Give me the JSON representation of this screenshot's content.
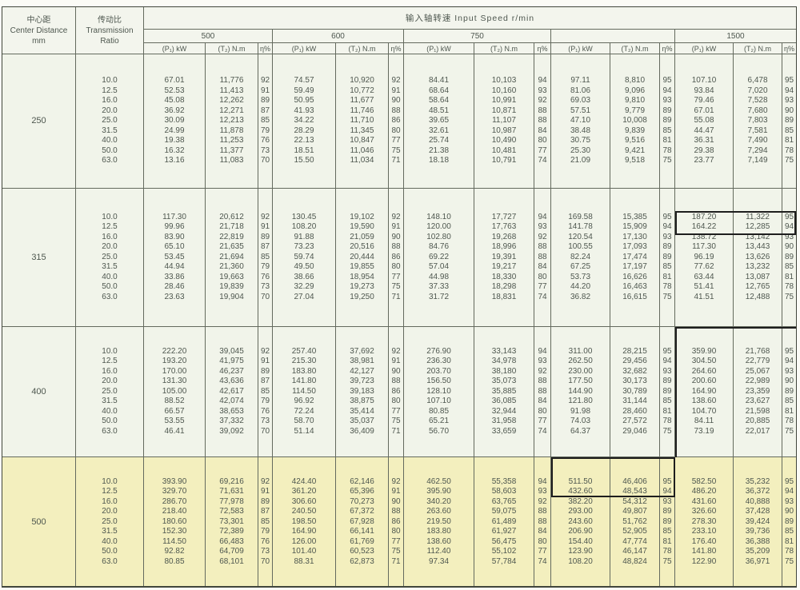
{
  "header": {
    "center_distance_lines": [
      "中心距",
      "Center Distance",
      "mm"
    ],
    "transmission_ratio_lines": [
      "传动比",
      "Transmission",
      "Ratio"
    ],
    "input_speed_title": "输入轴转速  Input Speed r/min",
    "speeds": [
      "500",
      "600",
      "750",
      "",
      "1500"
    ],
    "col_p": "(P₁) kW",
    "col_t": "(T₂) N.m",
    "col_eta": "η%"
  },
  "groups": [
    {
      "center_distance": "250",
      "highlight": false,
      "ratios": [
        "10.0",
        "12.5",
        "16.0",
        "20.0",
        "25.0",
        "31.5",
        "40.0",
        "50.0",
        "63.0"
      ],
      "speeds": [
        {
          "p": [
            "67.01",
            "52.53",
            "45.08",
            "36.92",
            "30.09",
            "24.99",
            "19.38",
            "16.32",
            "13.16"
          ],
          "t": [
            "11,776",
            "11,413",
            "12,262",
            "12,271",
            "12,213",
            "11,878",
            "11,253",
            "11,377",
            "11,083"
          ],
          "eta": [
            "92",
            "91",
            "89",
            "87",
            "85",
            "79",
            "76",
            "73",
            "70"
          ]
        },
        {
          "p": [
            "74.57",
            "59.49",
            "50.95",
            "41.93",
            "34.22",
            "28.29",
            "22.13",
            "18.51",
            "15.50"
          ],
          "t": [
            "10,920",
            "10,772",
            "11,677",
            "11,746",
            "11,710",
            "11,345",
            "10,847",
            "11,046",
            "11,034"
          ],
          "eta": [
            "92",
            "91",
            "90",
            "88",
            "86",
            "80",
            "77",
            "75",
            "71"
          ]
        },
        {
          "p": [
            "84.41",
            "68.64",
            "58.64",
            "48.51",
            "39.65",
            "32.61",
            "25.74",
            "21.38",
            "18.18"
          ],
          "t": [
            "10,103",
            "10,160",
            "10,991",
            "10,871",
            "11,107",
            "10,987",
            "10,490",
            "10,481",
            "10,791"
          ],
          "eta": [
            "94",
            "93",
            "92",
            "88",
            "88",
            "84",
            "80",
            "77",
            "74"
          ]
        },
        {
          "p": [
            "97.11",
            "81.06",
            "69.03",
            "57.51",
            "47.10",
            "38.48",
            "30.75",
            "25.30",
            "21.09"
          ],
          "t": [
            "8,810",
            "9,096",
            "9,810",
            "9,779",
            "10,008",
            "9,839",
            "9,516",
            "9,421",
            "9,518"
          ],
          "eta": [
            "95",
            "94",
            "93",
            "89",
            "89",
            "85",
            "81",
            "78",
            "75"
          ]
        },
        {
          "p": [
            "107.10",
            "93.84",
            "79.46",
            "67.01",
            "55.08",
            "44.47",
            "36.31",
            "29.38",
            "23.77"
          ],
          "t": [
            "6,478",
            "7,020",
            "7,528",
            "7,680",
            "7,803",
            "7,581",
            "7,490",
            "7,294",
            "7,149"
          ],
          "eta": [
            "95",
            "94",
            "93",
            "90",
            "89",
            "85",
            "81",
            "78",
            "75"
          ]
        }
      ]
    },
    {
      "center_distance": "315",
      "highlight": false,
      "ratios": [
        "10.0",
        "12.5",
        "16.0",
        "20.0",
        "25.0",
        "31.5",
        "40.0",
        "50.0",
        "63.0"
      ],
      "speeds": [
        {
          "p": [
            "117.30",
            "99.96",
            "83.90",
            "65.10",
            "53.45",
            "44.94",
            "33.86",
            "28.46",
            "23.63"
          ],
          "t": [
            "20,612",
            "21,718",
            "22,819",
            "21,635",
            "21,694",
            "21,360",
            "19,663",
            "19,839",
            "19,904"
          ],
          "eta": [
            "92",
            "91",
            "89",
            "87",
            "85",
            "79",
            "76",
            "73",
            "70"
          ]
        },
        {
          "p": [
            "130.45",
            "108.20",
            "91.88",
            "73.23",
            "59.74",
            "49.50",
            "38.66",
            "32.29",
            "27.04"
          ],
          "t": [
            "19,102",
            "19,590",
            "21,059",
            "20,516",
            "20,444",
            "19,855",
            "18,954",
            "19,273",
            "19,250"
          ],
          "eta": [
            "92",
            "91",
            "90",
            "88",
            "86",
            "80",
            "77",
            "75",
            "71"
          ]
        },
        {
          "p": [
            "148.10",
            "120.00",
            "102.80",
            "84.76",
            "69.22",
            "57.04",
            "44.98",
            "37.33",
            "31.72"
          ],
          "t": [
            "17,727",
            "17,763",
            "19,268",
            "18,996",
            "19,391",
            "19,217",
            "18,330",
            "18,298",
            "18,831"
          ],
          "eta": [
            "94",
            "93",
            "92",
            "88",
            "88",
            "84",
            "80",
            "77",
            "74"
          ]
        },
        {
          "p": [
            "169.58",
            "141.78",
            "120.54",
            "100.55",
            "82.24",
            "67.25",
            "53.73",
            "44.20",
            "36.82"
          ],
          "t": [
            "15,385",
            "15,909",
            "17,130",
            "17,093",
            "17,474",
            "17,197",
            "16,626",
            "16,463",
            "16,615"
          ],
          "eta": [
            "95",
            "94",
            "93",
            "89",
            "89",
            "85",
            "81",
            "78",
            "75"
          ]
        },
        {
          "p": [
            "187.20",
            "164.22",
            "138.72",
            "117.30",
            "96.19",
            "77.62",
            "63.44",
            "51.41",
            "41.51"
          ],
          "t": [
            "11,322",
            "12,285",
            "13,142",
            "13,443",
            "13,626",
            "13,232",
            "13,087",
            "12,765",
            "12,488"
          ],
          "eta": [
            "95",
            "94",
            "93",
            "90",
            "89",
            "85",
            "81",
            "78",
            "75"
          ]
        }
      ]
    },
    {
      "center_distance": "400",
      "highlight": false,
      "ratios": [
        "10.0",
        "12.5",
        "16.0",
        "20.0",
        "25.0",
        "31.5",
        "40.0",
        "50.0",
        "63.0"
      ],
      "speeds": [
        {
          "p": [
            "222.20",
            "193.20",
            "170.00",
            "131.30",
            "105.00",
            "88.52",
            "66.57",
            "53.55",
            "46.41"
          ],
          "t": [
            "39,045",
            "41,975",
            "46,237",
            "43,636",
            "42,617",
            "42,074",
            "38,653",
            "37,332",
            "39,092"
          ],
          "eta": [
            "92",
            "91",
            "89",
            "87",
            "85",
            "79",
            "76",
            "73",
            "70"
          ]
        },
        {
          "p": [
            "257.40",
            "215.30",
            "183.80",
            "141.80",
            "114.50",
            "96.92",
            "72.24",
            "58.70",
            "51.14"
          ],
          "t": [
            "37,692",
            "38,981",
            "42,127",
            "39,723",
            "39,183",
            "38,875",
            "35,414",
            "35,037",
            "36,409"
          ],
          "eta": [
            "92",
            "91",
            "90",
            "88",
            "86",
            "80",
            "77",
            "75",
            "71"
          ]
        },
        {
          "p": [
            "276.90",
            "236.30",
            "203.70",
            "156.50",
            "128.10",
            "107.10",
            "80.85",
            "65.21",
            "56.70"
          ],
          "t": [
            "33,143",
            "34,978",
            "38,180",
            "35,073",
            "35,885",
            "36,085",
            "32,944",
            "31,958",
            "33,659"
          ],
          "eta": [
            "94",
            "93",
            "92",
            "88",
            "88",
            "84",
            "80",
            "77",
            "74"
          ]
        },
        {
          "p": [
            "311.00",
            "262.50",
            "230.00",
            "177.50",
            "144.90",
            "121.80",
            "91.98",
            "74.03",
            "64.37"
          ],
          "t": [
            "28,215",
            "29,456",
            "32,682",
            "30,173",
            "30,789",
            "31,144",
            "28,460",
            "27,572",
            "29,046"
          ],
          "eta": [
            "95",
            "94",
            "93",
            "89",
            "89",
            "85",
            "81",
            "78",
            "75"
          ]
        },
        {
          "p": [
            "359.90",
            "304.50",
            "264.60",
            "200.60",
            "164.90",
            "138.60",
            "104.70",
            "84.11",
            "73.19"
          ],
          "t": [
            "21,768",
            "22,779",
            "25,067",
            "22,989",
            "23,359",
            "23,627",
            "21,598",
            "20,885",
            "22,017"
          ],
          "eta": [
            "95",
            "94",
            "93",
            "90",
            "89",
            "85",
            "81",
            "78",
            "75"
          ]
        }
      ]
    },
    {
      "center_distance": "500",
      "highlight": true,
      "ratios": [
        "10.0",
        "12.5",
        "16.0",
        "20.0",
        "25.0",
        "31.5",
        "40.0",
        "50.0",
        "63.0"
      ],
      "speeds": [
        {
          "p": [
            "393.90",
            "329.70",
            "286.70",
            "218.40",
            "180.60",
            "152.30",
            "114.50",
            "92.82",
            "80.85"
          ],
          "t": [
            "69,216",
            "71,631",
            "77,978",
            "72,583",
            "73,301",
            "72,389",
            "66,483",
            "64,709",
            "68,101"
          ],
          "eta": [
            "92",
            "91",
            "89",
            "87",
            "85",
            "79",
            "76",
            "73",
            "70"
          ]
        },
        {
          "p": [
            "424.40",
            "361.20",
            "306.60",
            "240.50",
            "198.50",
            "164.90",
            "126.00",
            "101.40",
            "88.31"
          ],
          "t": [
            "62,146",
            "65,396",
            "70,273",
            "67,372",
            "67,928",
            "66,141",
            "61,769",
            "60,523",
            "62,873"
          ],
          "eta": [
            "92",
            "91",
            "90",
            "88",
            "86",
            "80",
            "77",
            "75",
            "71"
          ]
        },
        {
          "p": [
            "462.50",
            "395.90",
            "340.20",
            "263.60",
            "219.50",
            "183.80",
            "138.60",
            "112.40",
            "97.34"
          ],
          "t": [
            "55,358",
            "58,603",
            "63,765",
            "59,075",
            "61,489",
            "61,927",
            "56,475",
            "55,102",
            "57,784"
          ],
          "eta": [
            "94",
            "93",
            "92",
            "88",
            "88",
            "84",
            "80",
            "77",
            "74"
          ]
        },
        {
          "p": [
            "511.50",
            "432.60",
            "382.20",
            "293.00",
            "243.60",
            "206.90",
            "154.40",
            "123.90",
            "108.20"
          ],
          "t": [
            "46,406",
            "48,543",
            "54,312",
            "49,807",
            "51,762",
            "52,905",
            "47,774",
            "46,147",
            "48,824"
          ],
          "eta": [
            "95",
            "94",
            "93",
            "89",
            "89",
            "85",
            "81",
            "78",
            "75"
          ]
        },
        {
          "p": [
            "582.50",
            "486.20",
            "431.60",
            "326.60",
            "278.30",
            "233.10",
            "176.40",
            "141.80",
            "122.90"
          ],
          "t": [
            "35,232",
            "36,372",
            "40,888",
            "37,428",
            "39,424",
            "39,736",
            "36,388",
            "35,209",
            "36,971"
          ],
          "eta": [
            "95",
            "94",
            "93",
            "90",
            "89",
            "85",
            "81",
            "78",
            "75"
          ]
        }
      ]
    }
  ],
  "colors": {
    "paper": "#f1f4ea",
    "highlight_bg": "#f3efbe",
    "grid_line": "#646a5e",
    "text": "#4e574f",
    "pen_mark": "#1e1e1e"
  }
}
